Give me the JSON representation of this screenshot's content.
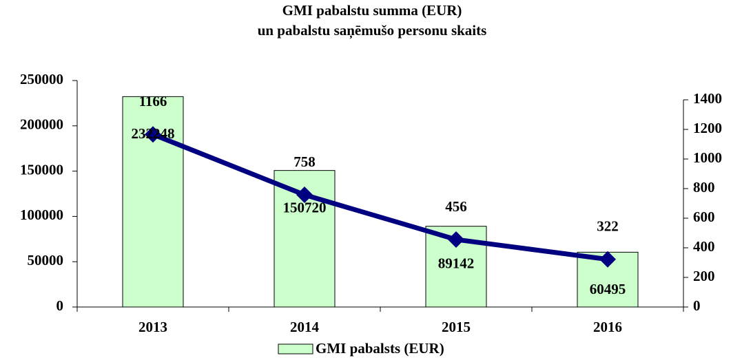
{
  "chart_data": {
    "type": "bar",
    "title": [
      "GMI pabalstu summa (EUR)",
      "un pabalstu saņēmušo personu skaits"
    ],
    "categories": [
      "2013",
      "2014",
      "2015",
      "2016"
    ],
    "series": [
      {
        "name": "GMI pabalsts (EUR)",
        "type": "bar",
        "color": "#ccffcc",
        "values": [
          232248,
          150720,
          89142,
          60495
        ]
      },
      {
        "type": "line",
        "axis": "y2",
        "color": "#000080",
        "values": [
          1166,
          758,
          456,
          322
        ]
      }
    ],
    "ylim": [
      0,
      250000
    ],
    "yticks": [
      0,
      50000,
      100000,
      150000,
      200000,
      250000
    ],
    "y2lim": [
      0,
      1400
    ],
    "y2ticks": [
      0,
      200,
      400,
      600,
      800,
      1000,
      1200,
      1400
    ],
    "legend": "bottom"
  }
}
